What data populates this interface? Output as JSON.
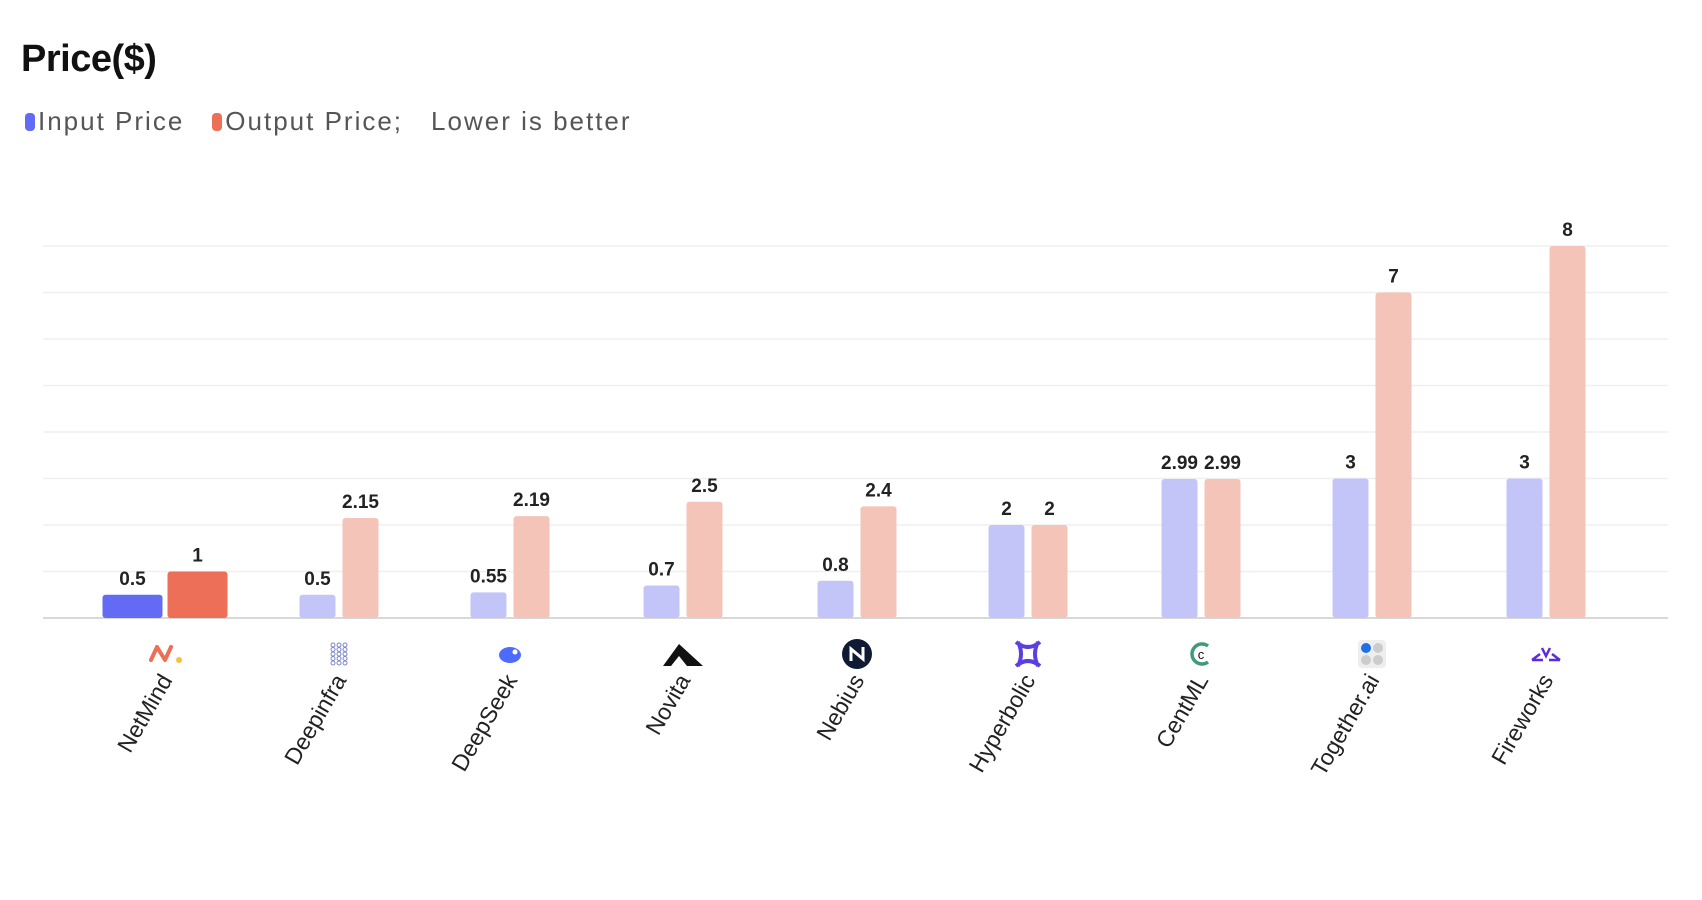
{
  "chart_data": {
    "type": "bar",
    "title": "Price($)",
    "legend": [
      {
        "name": "Input Price",
        "color": "#636BF5"
      },
      {
        "name": "Output Price;",
        "color": "#EE6F57"
      }
    ],
    "note": "Lower is better",
    "categories": [
      "NetMind",
      "Deepinfra",
      "DeepSeek",
      "Novita",
      "Nebius",
      "Hyperbolic",
      "CentML",
      "Together.ai",
      "Fireworks"
    ],
    "category_icons": [
      "netmind-icon",
      "deepinfra-icon",
      "deepseek-icon",
      "novita-icon",
      "nebius-icon",
      "hyperbolic-icon",
      "centml-icon",
      "togetherai-icon",
      "fireworks-icon"
    ],
    "series": [
      {
        "name": "Input Price",
        "values": [
          0.5,
          0.5,
          0.55,
          0.7,
          0.8,
          2,
          2.99,
          3,
          3
        ],
        "labels": [
          "0.5",
          "0.5",
          "0.55",
          "0.7",
          "0.8",
          "2",
          "2.99",
          "3",
          "3"
        ]
      },
      {
        "name": "Output Price",
        "values": [
          1,
          2.15,
          2.19,
          2.5,
          2.4,
          2,
          2.99,
          7,
          8
        ],
        "labels": [
          "1",
          "2.15",
          "2.19",
          "2.5",
          "2.4",
          "2",
          "2.99",
          "7",
          "8"
        ]
      }
    ],
    "highlighted_category": "NetMind",
    "colors": {
      "input": "#636BF5",
      "output": "#EE6F57",
      "input_faded": "#C3C5F8",
      "output_faded": "#F4C4B9"
    },
    "ylim": [
      0,
      8
    ],
    "grid": true,
    "xlabel": "",
    "ylabel": ""
  }
}
